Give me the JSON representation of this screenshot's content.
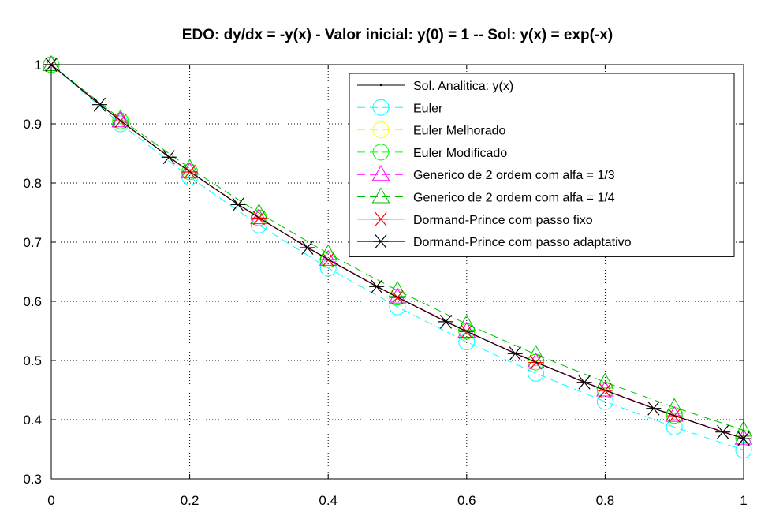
{
  "chart_data": {
    "type": "line",
    "title": "EDO: dy/dx = -y(x) - Valor inicial: y(0) = 1 -- Sol: y(x) = exp(-x)",
    "xlabel": "",
    "ylabel": "",
    "xlim": [
      0,
      1
    ],
    "ylim": [
      0.3,
      1
    ],
    "x_ticks": [
      0,
      0.2,
      0.4,
      0.6,
      0.8,
      1
    ],
    "x_tick_labels": [
      "0",
      "0.2",
      "0.4",
      "0.6",
      "0.8",
      "1"
    ],
    "y_ticks": [
      0.3,
      0.4,
      0.5,
      0.6,
      0.7,
      0.8,
      0.9,
      1
    ],
    "y_tick_labels": [
      "0.3",
      "0.4",
      "0.5",
      "0.6",
      "0.7",
      "0.8",
      "0.9",
      "1"
    ],
    "grid": true,
    "legend_position": "top-right",
    "x": [
      0,
      0.1,
      0.2,
      0.3,
      0.4,
      0.5,
      0.6,
      0.7,
      0.8,
      0.9,
      1.0
    ],
    "series": [
      {
        "name": "Sol. Analitica: y(x)",
        "color": "#000000",
        "line": "solid",
        "marker": "dot",
        "values": [
          1.0,
          0.9048,
          0.8187,
          0.7408,
          0.6703,
          0.6065,
          0.5488,
          0.4966,
          0.4493,
          0.4066,
          0.3679
        ]
      },
      {
        "name": "Euler",
        "color": "#00ffff",
        "line": "dashed",
        "marker": "circle",
        "values": [
          1.0,
          0.9,
          0.81,
          0.729,
          0.6561,
          0.5905,
          0.5314,
          0.4783,
          0.4305,
          0.3874,
          0.3487
        ]
      },
      {
        "name": "Euler Melhorado",
        "color": "#ffff00",
        "line": "dashed",
        "marker": "circle",
        "values": [
          1.0,
          0.905,
          0.819,
          0.7412,
          0.6708,
          0.6071,
          0.5494,
          0.4972,
          0.45,
          0.4072,
          0.3685
        ]
      },
      {
        "name": "Euler Modificado",
        "color": "#00ff00",
        "line": "dashed",
        "marker": "circle",
        "values": [
          1.0,
          0.905,
          0.819,
          0.7412,
          0.6708,
          0.6071,
          0.5494,
          0.4972,
          0.45,
          0.4072,
          0.3685
        ]
      },
      {
        "name": "Generico de 2 ordem com alfa = 1/3",
        "color": "#ff00ff",
        "line": "dashed",
        "marker": "triangle",
        "values": [
          1.0,
          0.905,
          0.819,
          0.7412,
          0.6708,
          0.6071,
          0.5494,
          0.4972,
          0.45,
          0.4072,
          0.3685
        ]
      },
      {
        "name": "Generico de 2 ordem com alfa = 1/4",
        "color": "#00c000",
        "line": "dashed",
        "marker": "triangle",
        "values": [
          1.0,
          0.9083,
          0.825,
          0.7494,
          0.6807,
          0.6183,
          0.5616,
          0.5101,
          0.4633,
          0.4208,
          0.3822
        ]
      },
      {
        "name": "Dormand-Prince com passo fixo",
        "color": "#ff0000",
        "line": "solid",
        "marker": "asterisk",
        "values": [
          1.0,
          0.9048,
          0.8187,
          0.7408,
          0.6703,
          0.6065,
          0.5488,
          0.4966,
          0.4493,
          0.4066,
          0.3679
        ]
      },
      {
        "name": "Dormand-Prince com passo adaptativo",
        "color": "#000000",
        "line": "solid",
        "marker": "asterisk",
        "x": [
          0,
          0.07,
          0.17,
          0.27,
          0.37,
          0.47,
          0.57,
          0.67,
          0.77,
          0.87,
          0.97,
          1.0
        ],
        "values": [
          1.0,
          0.9324,
          0.8437,
          0.7634,
          0.6907,
          0.625,
          0.5655,
          0.5117,
          0.463,
          0.419,
          0.3791,
          0.3679
        ]
      }
    ]
  }
}
